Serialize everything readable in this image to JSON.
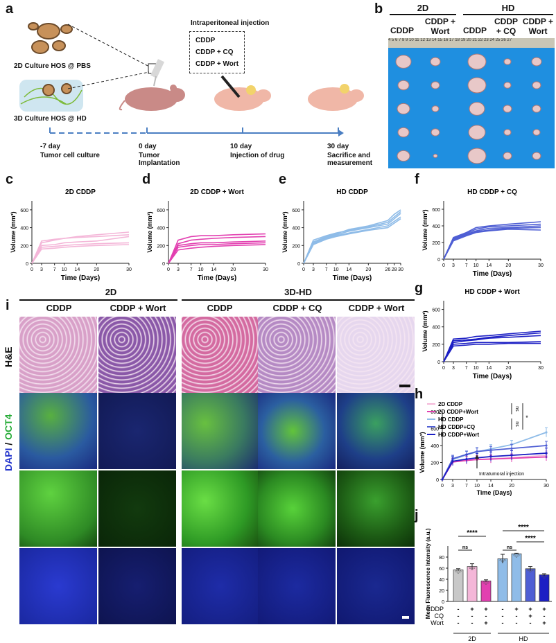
{
  "panels": {
    "a": "a",
    "b": "b",
    "c": "c",
    "d": "d",
    "e": "e",
    "f": "f",
    "g": "g",
    "h": "h",
    "i": "i",
    "j": "j"
  },
  "schematic": {
    "culture_2d": "2D Culture HOS @ PBS",
    "culture_3d": "3D Culture HOS @ HD",
    "injection_title": "Intraperitoneal injection",
    "drugs": [
      "CDDP",
      "CDDP + CQ",
      "CDDP + Wort"
    ],
    "timeline": [
      {
        "day": "-7 day",
        "desc": "Tumor cell culture"
      },
      {
        "day": "0 day",
        "desc": "Tumor Implantation"
      },
      {
        "day": "10 day",
        "desc": "Injection of drug"
      },
      {
        "day": "30 day",
        "desc": "Sacrifice and measurement"
      }
    ]
  },
  "photo": {
    "group_2d": "2D",
    "group_hd": "HD",
    "columns": [
      "CDDP",
      "CDDP + Wort",
      "CDDP",
      "CDDP + CQ",
      "CDDP + Wort"
    ],
    "ruler": "4 5 6 7 8 9 10 11 12 13 14 15 16 17 18 19 20 21 22 23 24 25 26 27"
  },
  "histo": {
    "group_2d": "2D",
    "group_3d": "3D-HD",
    "columns": [
      "CDDP",
      "CDDP + Wort",
      "CDDP",
      "CDDP + CQ",
      "CDDP + Wort"
    ],
    "row_he": "H&E",
    "row_dapi": "DAPI",
    "row_sep": " / ",
    "row_oct4": "OCT4"
  },
  "colors": {
    "pink_light": "#f4b6d8",
    "pink": "#e23fb0",
    "lightblue": "#8fbce8",
    "blue_mid": "#4f5fd4",
    "blue_dark": "#1c1fc4",
    "gray_bar": "#c8c8c8"
  },
  "chart_data": [
    {
      "panel": "c",
      "type": "line",
      "title": "2D CDDP",
      "xlabel": "Time (Days)",
      "ylabel": "Volume (mm³)",
      "x": [
        0,
        3,
        7,
        10,
        14,
        20,
        30
      ],
      "ylim": [
        0,
        700
      ],
      "yticks": [
        0,
        200,
        400,
        600
      ],
      "series": [
        {
          "values": [
            0,
            230,
            260,
            280,
            300,
            320,
            350
          ]
        },
        {
          "values": [
            0,
            200,
            210,
            230,
            240,
            250,
            300
          ]
        },
        {
          "values": [
            0,
            180,
            190,
            200,
            210,
            220,
            230
          ]
        },
        {
          "values": [
            0,
            160,
            170,
            180,
            190,
            200,
            210
          ]
        },
        {
          "values": [
            0,
            250,
            270,
            280,
            290,
            300,
            320
          ]
        }
      ],
      "color": "#f4b6d8"
    },
    {
      "panel": "d",
      "type": "line",
      "title": "2D CDDP + Wort",
      "xlabel": "Time (Days)",
      "ylabel": "Volume (mm³)",
      "x": [
        0,
        3,
        7,
        10,
        14,
        20,
        30
      ],
      "ylim": [
        0,
        700
      ],
      "yticks": [
        0,
        200,
        400,
        600
      ],
      "series": [
        {
          "values": [
            0,
            260,
            300,
            310,
            310,
            320,
            330
          ]
        },
        {
          "values": [
            0,
            220,
            260,
            270,
            280,
            290,
            300
          ]
        },
        {
          "values": [
            0,
            200,
            220,
            230,
            230,
            240,
            250
          ]
        },
        {
          "values": [
            0,
            180,
            200,
            210,
            210,
            220,
            230
          ]
        },
        {
          "values": [
            0,
            150,
            170,
            180,
            190,
            200,
            210
          ]
        }
      ],
      "color": "#e23fb0"
    },
    {
      "panel": "e",
      "type": "line",
      "title": "HD CDDP",
      "xlabel": "Time (Days)",
      "ylabel": "Volume (mm³)",
      "x": [
        0,
        3,
        7,
        10,
        14,
        20,
        26,
        28,
        30
      ],
      "ylim": [
        0,
        700
      ],
      "yticks": [
        0,
        200,
        400,
        600
      ],
      "series": [
        {
          "values": [
            0,
            240,
            300,
            330,
            380,
            420,
            480,
            550,
            600
          ]
        },
        {
          "values": [
            0,
            230,
            290,
            320,
            360,
            400,
            440,
            500,
            560
          ]
        },
        {
          "values": [
            0,
            220,
            280,
            310,
            340,
            380,
            420,
            470,
            520
          ]
        },
        {
          "values": [
            0,
            260,
            310,
            340,
            370,
            410,
            460,
            520,
            580
          ]
        },
        {
          "values": [
            0,
            210,
            270,
            300,
            330,
            370,
            400,
            450,
            500
          ]
        }
      ],
      "color": "#8fbce8"
    },
    {
      "panel": "f",
      "type": "line",
      "title": "HD CDDP + CQ",
      "xlabel": "Time (Days)",
      "ylabel": "Volume (mm³)",
      "x": [
        0,
        3,
        7,
        10,
        14,
        20,
        30
      ],
      "ylim": [
        0,
        700
      ],
      "yticks": [
        0,
        200,
        400,
        600
      ],
      "series": [
        {
          "values": [
            0,
            260,
            320,
            380,
            400,
            420,
            450
          ]
        },
        {
          "values": [
            0,
            250,
            310,
            360,
            390,
            400,
            420
          ]
        },
        {
          "values": [
            0,
            240,
            300,
            340,
            370,
            380,
            400
          ]
        },
        {
          "values": [
            0,
            230,
            290,
            330,
            350,
            370,
            380
          ]
        },
        {
          "values": [
            0,
            220,
            280,
            320,
            340,
            360,
            350
          ]
        }
      ],
      "color": "#4f5fd4"
    },
    {
      "panel": "g",
      "type": "line",
      "title": "HD CDDP + Wort",
      "xlabel": "Time (Days)",
      "ylabel": "Volume (mm³)",
      "x": [
        0,
        3,
        7,
        10,
        14,
        20,
        30
      ],
      "ylim": [
        0,
        700
      ],
      "yticks": [
        0,
        200,
        400,
        600
      ],
      "series": [
        {
          "values": [
            0,
            260,
            270,
            290,
            300,
            320,
            350
          ]
        },
        {
          "values": [
            0,
            240,
            250,
            260,
            280,
            300,
            330
          ]
        },
        {
          "values": [
            0,
            220,
            240,
            250,
            270,
            280,
            300
          ]
        },
        {
          "values": [
            0,
            200,
            210,
            220,
            220,
            220,
            230
          ]
        },
        {
          "values": [
            0,
            180,
            190,
            200,
            200,
            210,
            210
          ]
        }
      ],
      "color": "#1c1fc4"
    },
    {
      "panel": "h",
      "type": "line",
      "xlabel": "Time (Days)",
      "ylabel": "Volume (mm³)",
      "x": [
        0,
        3,
        7,
        10,
        14,
        20,
        30
      ],
      "ylim": [
        0,
        800
      ],
      "yticks": [
        0,
        200,
        400,
        600,
        800
      ],
      "annotation": "Intratumoral injection",
      "sig": [
        "ns",
        "ns",
        "*"
      ],
      "series": [
        {
          "name": "2D CDDP",
          "color": "#f4b6d8",
          "values": [
            0,
            210,
            225,
            235,
            245,
            255,
            285
          ],
          "err": [
            0,
            40,
            45,
            45,
            50,
            50,
            50
          ]
        },
        {
          "name": "2D CDDP+Wort",
          "color": "#e23fb0",
          "values": [
            0,
            205,
            225,
            235,
            240,
            250,
            265
          ],
          "err": [
            0,
            40,
            45,
            45,
            45,
            45,
            45
          ]
        },
        {
          "name": "HD CDDP",
          "color": "#8fbce8",
          "values": [
            0,
            235,
            290,
            325,
            360,
            410,
            555
          ],
          "err": [
            0,
            40,
            40,
            45,
            50,
            50,
            55
          ]
        },
        {
          "name": "HD CDDP+CQ",
          "color": "#4f5fd4",
          "values": [
            0,
            245,
            295,
            330,
            345,
            365,
            400
          ],
          "err": [
            0,
            40,
            40,
            45,
            45,
            50,
            50
          ]
        },
        {
          "name": "HD CDDP+Wort",
          "color": "#1c1fc4",
          "values": [
            0,
            215,
            240,
            255,
            270,
            285,
            310
          ],
          "err": [
            0,
            50,
            50,
            50,
            55,
            55,
            60
          ]
        }
      ]
    },
    {
      "panel": "j",
      "type": "bar",
      "ylabel": "Mean Fluorescence Intensity (a.u.)",
      "ylim": [
        0,
        100
      ],
      "yticks": [
        0,
        20,
        40,
        60,
        80
      ],
      "values": [
        57,
        63,
        37,
        77,
        86,
        59,
        48
      ],
      "err": [
        2,
        5,
        2,
        8,
        1,
        4,
        2
      ],
      "colors": [
        "#c8c8c8",
        "#f4b6d8",
        "#e23fb0",
        "#8fbce8",
        "#8fbce8",
        "#4f5fd4",
        "#1c1fc4"
      ],
      "row_labels": [
        "CDDP",
        "CQ",
        "Wort"
      ],
      "signs": [
        [
          "-",
          "+",
          "+",
          "-",
          "+",
          "+",
          "+"
        ],
        [
          "-",
          "-",
          "-",
          "-",
          "-",
          "+",
          "-"
        ],
        [
          "-",
          "-",
          "+",
          "-",
          "-",
          "-",
          "+"
        ]
      ],
      "groups": [
        "2D",
        "HD"
      ],
      "sig": [
        "****",
        "ns",
        "****",
        "ns",
        "****"
      ]
    }
  ]
}
